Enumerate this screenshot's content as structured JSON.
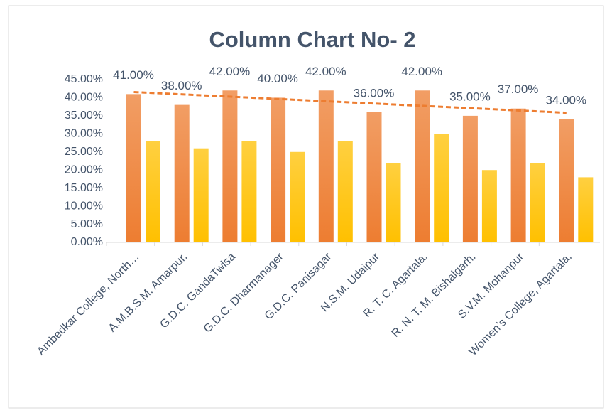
{
  "chart_data": {
    "type": "bar",
    "title": "Column Chart No- 2",
    "categories": [
      "Ambedkar College, North…",
      "A.M.B.S.M. Amarpur.",
      "G.D.C. GandaTwisa",
      "G.D.C. Dharmanager",
      "G.D.C. Panisagar",
      "N.S.M. Udaipur",
      "R. T. C. Agartala.",
      "R. N. T. M. Bishalgarh.",
      "S.V.M. Mohanpur",
      "Women’s College, Agartala."
    ],
    "series": [
      {
        "color": "#ed7d31",
        "trendline": "linear",
        "values": [
          41,
          38,
          42,
          40,
          42,
          36,
          42,
          35,
          37,
          34
        ],
        "value_labels": [
          "41.00%",
          "38.00%",
          "42.00%",
          "40.00%",
          "42.00%",
          "36.00%",
          "42.00%",
          "35.00%",
          "37.00%",
          "34.00%"
        ]
      },
      {
        "color": "#ffc000",
        "values": [
          28,
          26,
          28,
          25,
          28,
          22,
          30,
          20,
          22,
          18
        ]
      }
    ],
    "ylim": [
      0,
      45
    ],
    "yticks": [
      {
        "value": 0,
        "label": "0.00%"
      },
      {
        "value": 5,
        "label": "5.00%"
      },
      {
        "value": 10,
        "label": "10.00%"
      },
      {
        "value": 15,
        "label": "15.00%"
      },
      {
        "value": 20,
        "label": "20.00%"
      },
      {
        "value": 25,
        "label": "25.00%"
      },
      {
        "value": 30,
        "label": "30.00%"
      },
      {
        "value": 35,
        "label": "35.00%"
      },
      {
        "value": 40,
        "label": "40.00%"
      },
      {
        "value": 45,
        "label": "45.00%"
      }
    ],
    "grid": false
  }
}
